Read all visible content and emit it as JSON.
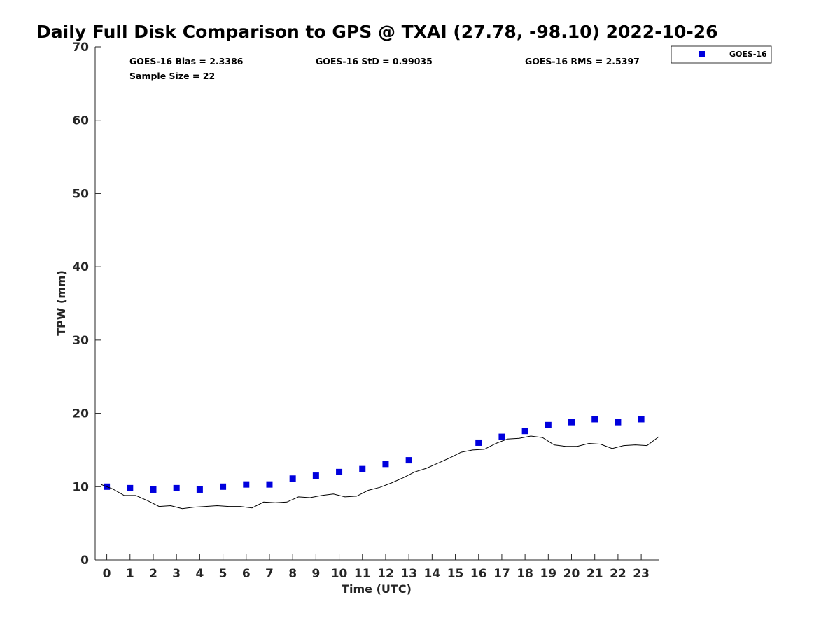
{
  "chart_data": {
    "type": "scatter",
    "title": "Daily Full Disk Comparison to GPS @ TXAI (27.78, -98.10) 2022-10-26",
    "xlabel": "Time (UTC)",
    "ylabel": "TPW (mm)",
    "xlim": [
      -0.5,
      23.75
    ],
    "ylim": [
      0,
      70
    ],
    "x_ticks": [
      0,
      1,
      2,
      3,
      4,
      5,
      6,
      7,
      8,
      9,
      10,
      11,
      12,
      13,
      14,
      15,
      16,
      17,
      18,
      19,
      20,
      21,
      22,
      23
    ],
    "y_ticks": [
      0,
      10,
      20,
      30,
      40,
      50,
      60,
      70
    ],
    "grid": false,
    "legend_position": "top-right outside",
    "stats": {
      "bias": "GOES-16 Bias = 2.3386",
      "std": "GOES-16 StD = 0.99035",
      "rms": "GOES-16 RMS = 2.5397",
      "sample": "Sample Size = 22"
    },
    "series": [
      {
        "name": "GOES-16",
        "kind": "scatter",
        "marker": "square",
        "color": "#0000dd",
        "x": [
          0,
          1,
          2,
          3,
          4,
          5,
          6,
          7,
          8,
          9,
          10,
          11,
          12,
          13,
          16,
          17,
          18,
          19,
          20,
          21,
          22,
          23
        ],
        "y": [
          10.0,
          9.8,
          9.6,
          9.8,
          9.6,
          10.0,
          10.3,
          10.3,
          11.1,
          11.5,
          12.0,
          12.4,
          13.1,
          13.6,
          16.0,
          16.8,
          17.6,
          18.4,
          18.8,
          19.2,
          18.8,
          19.2
        ]
      },
      {
        "kind": "line",
        "color": "#000000",
        "x": [
          -0.25,
          0,
          0.25,
          0.75,
          1.25,
          1.75,
          2.25,
          2.75,
          3.25,
          3.75,
          4.25,
          4.75,
          5.25,
          5.75,
          6.25,
          6.75,
          7.25,
          7.75,
          8.25,
          8.75,
          9.25,
          9.75,
          10.25,
          10.75,
          11.25,
          11.75,
          12.25,
          12.75,
          13.25,
          13.75,
          14.25,
          14.75,
          15.25,
          15.75,
          16.25,
          16.75,
          17.25,
          17.75,
          18.25,
          18.75,
          19.25,
          19.75,
          20.25,
          20.75,
          21.25,
          21.75,
          22.25,
          22.75,
          23.25,
          23.75
        ],
        "y": [
          10.3,
          10.0,
          9.7,
          8.8,
          8.8,
          8.1,
          7.3,
          7.4,
          7.0,
          7.2,
          7.3,
          7.4,
          7.3,
          7.3,
          7.1,
          7.9,
          7.8,
          7.9,
          8.6,
          8.5,
          8.8,
          9.0,
          8.6,
          8.7,
          9.5,
          9.9,
          10.5,
          11.2,
          12.0,
          12.5,
          13.2,
          13.9,
          14.7,
          15.0,
          15.1,
          15.9,
          16.5,
          16.6,
          16.9,
          16.7,
          15.7,
          15.5,
          15.5,
          15.9,
          15.8,
          15.2,
          15.6,
          15.7,
          15.6,
          16.8
        ]
      }
    ]
  }
}
